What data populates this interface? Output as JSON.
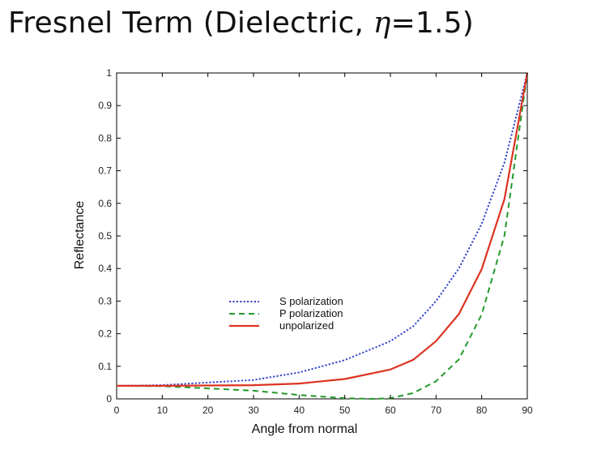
{
  "slide": {
    "title_prefix": "Fresnel Term (Dielectric, ",
    "title_symbol": "η",
    "title_suffix": "=1.5)"
  },
  "chart_data": {
    "type": "line",
    "title": "Fresnel Term (Dielectric, η=1.5)",
    "xlabel": "Angle from normal",
    "ylabel": "Reflectance",
    "xlim": [
      0,
      90
    ],
    "ylim": [
      0,
      1
    ],
    "x_ticks": [
      0,
      10,
      20,
      30,
      40,
      50,
      60,
      70,
      80,
      90
    ],
    "y_ticks": [
      0,
      0.1,
      0.2,
      0.3,
      0.4,
      0.5,
      0.6,
      0.7,
      0.8,
      0.9,
      1
    ],
    "y_tick_labels": [
      "0",
      "0.1",
      "0.2",
      "0.3",
      "0.4",
      "0.5",
      "0.6",
      "0.7",
      "0.8",
      "0.9",
      "1"
    ],
    "grid": false,
    "legend_position": "center-left",
    "series": [
      {
        "name": "S polarization",
        "style": "dotted",
        "color": "#3344cc",
        "x": [
          0,
          10,
          20,
          30,
          40,
          50,
          60,
          65,
          70,
          75,
          80,
          85,
          90
        ],
        "values": [
          0.04,
          0.042,
          0.05,
          0.058,
          0.081,
          0.119,
          0.177,
          0.223,
          0.3,
          0.4,
          0.537,
          0.725,
          1.0
        ]
      },
      {
        "name": "P polarization",
        "style": "dashed",
        "color": "#22992a",
        "x": [
          0,
          10,
          20,
          30,
          40,
          50,
          56.3,
          60,
          65,
          70,
          75,
          80,
          85,
          90
        ],
        "values": [
          0.04,
          0.039,
          0.032,
          0.025,
          0.012,
          0.002,
          0.0,
          0.002,
          0.018,
          0.054,
          0.121,
          0.259,
          0.501,
          1.0
        ]
      },
      {
        "name": "unpolarized",
        "style": "solid",
        "color": "#dd3322",
        "x": [
          0,
          10,
          20,
          30,
          40,
          50,
          60,
          65,
          70,
          75,
          80,
          85,
          90
        ],
        "values": [
          0.04,
          0.04,
          0.041,
          0.042,
          0.047,
          0.061,
          0.09,
          0.12,
          0.177,
          0.26,
          0.398,
          0.613,
          1.0
        ]
      }
    ]
  }
}
